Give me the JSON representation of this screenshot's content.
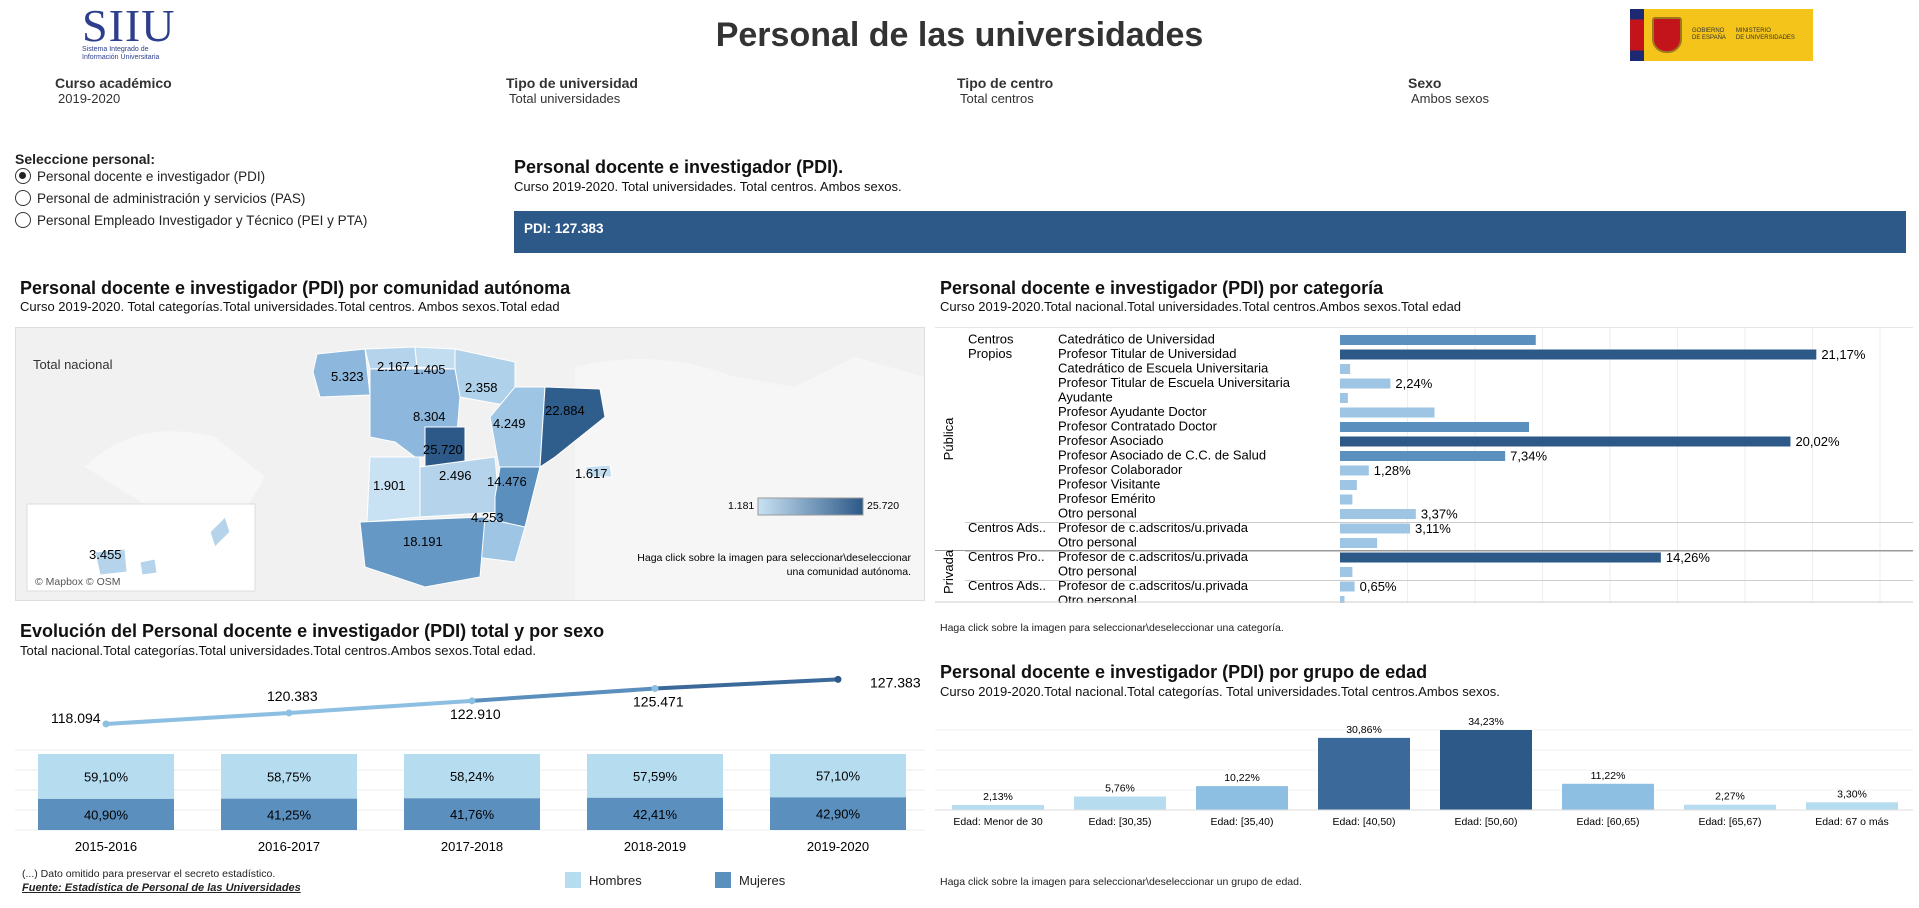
{
  "header": {
    "title": "Personal de las universidades",
    "logo": {
      "text": "SIIU",
      "subtitle_line1": "Sistema Integrado de",
      "subtitle_line2": "Información Universitaria"
    },
    "gov_logo": {
      "line1": "GOBIERNO",
      "line2": "DE ESPAÑA",
      "line3": "MINISTERIO",
      "line4": "DE UNIVERSIDADES"
    }
  },
  "filters": [
    {
      "label": "Curso académico",
      "value": "2019-2020"
    },
    {
      "label": "Tipo de universidad",
      "value": "Total universidades"
    },
    {
      "label": "Tipo de centro",
      "value": "Total centros"
    },
    {
      "label": "Sexo",
      "value": "Ambos sexos"
    }
  ],
  "selector": {
    "label": "Seleccione personal:",
    "options": [
      {
        "label": "Personal docente e investigador (PDI)",
        "selected": true
      },
      {
        "label": "Personal de administración y servicios (PAS)",
        "selected": false
      },
      {
        "label": "Personal Empleado Investigador y Técnico (PEI y PTA)",
        "selected": false
      }
    ]
  },
  "summary": {
    "title": "Personal docente e investigador (PDI).",
    "subtitle": "Curso  2019-2020. Total universidades. Total centros. Ambos sexos.",
    "total_label": "PDI: 127.383",
    "color": "#2c5988"
  },
  "map_panel": {
    "title": "Personal docente e investigador (PDI) por comunidad autónoma",
    "subtitle": "Curso 2019-2020. Total categorías.Total universidades.Total centros. Ambos sexos.Total edad",
    "total_label": "Total nacional",
    "attribution": "© Mapbox © OSM",
    "legend_min": "1.181",
    "legend_max": "25.720",
    "hint_line1": "Haga click sobre la imagen para seleccionar\\deseleccionar",
    "hint_line2": "una comunidad autónoma."
  },
  "category_panel": {
    "title": "Personal docente e investigador (PDI) por categoría",
    "subtitle": "Curso 2019-2020.Total nacional.Total universidades.Total centros.Ambos sexos.Total edad",
    "hint": "Haga click sobre la imagen para seleccionar\\deseleccionar una categoría.",
    "sectors": [
      "Pública",
      "Privada"
    ],
    "groups": [
      "Centros Propios",
      "Centros Ads..",
      "Centros Pro..",
      "Centros Ads.."
    ]
  },
  "evolution_panel": {
    "title": "Evolución del Personal docente e investigador (PDI) total y por sexo",
    "subtitle": "Total nacional.Total categorías.Total universidades.Total centros.Ambos sexos.Total edad.",
    "legend": [
      {
        "label": "Hombres",
        "color": "#b6dcf0"
      },
      {
        "label": "Mujeres",
        "color": "#5b8fbe"
      }
    ],
    "note": "(...) Dato omitido para preservar el secreto estadístico.",
    "source": "Fuente: Estadística de Personal de las Universidades"
  },
  "age_panel": {
    "title": "Personal docente e investigador (PDI) por grupo de edad",
    "subtitle": "Curso 2019-2020.Total nacional.Total categorías. Total universidades.Total centros.Ambos sexos.",
    "hint": "Haga click sobre la imagen para seleccionar\\deseleccionar un grupo de edad."
  },
  "chart_data": [
    {
      "type": "map",
      "name": "PDI por comunidad autónoma",
      "values": [
        {
          "region": "Galicia",
          "value": "5.323"
        },
        {
          "region": "Asturias",
          "value": "2.167"
        },
        {
          "region": "Cantabria",
          "value": "1.405"
        },
        {
          "region": "País Vasco / Navarra",
          "value": "2.358"
        },
        {
          "region": "Castilla y León",
          "value": "8.304"
        },
        {
          "region": "Aragón",
          "value": "4.249"
        },
        {
          "region": "Cataluña",
          "value": "22.884"
        },
        {
          "region": "Madrid",
          "value": "25.720"
        },
        {
          "region": "Extremadura",
          "value": "1.901"
        },
        {
          "region": "Castilla-La Mancha",
          "value": "2.496"
        },
        {
          "region": "Comunitat Valenciana",
          "value": "14.476"
        },
        {
          "region": "Illes Balears",
          "value": "1.617"
        },
        {
          "region": "Murcia",
          "value": "4.253"
        },
        {
          "region": "Andalucía",
          "value": "18.191"
        },
        {
          "region": "Canarias",
          "value": "3.455"
        }
      ],
      "color_range": [
        "#c9e2f3",
        "#2c5988"
      ]
    },
    {
      "type": "bar",
      "name": "PDI por categoría",
      "orientation": "horizontal",
      "rows": [
        {
          "sector": "Pública",
          "group": "Centros Propios",
          "category": "Catedrático de Universidad",
          "value": 8.7,
          "label": ""
        },
        {
          "sector": "Pública",
          "group": "Centros Propios",
          "category": "Profesor Titular de Universidad",
          "value": 21.17,
          "label": "21,17%"
        },
        {
          "sector": "Pública",
          "group": "Centros Propios",
          "category": "Catedrático de Escuela Universitaria",
          "value": 0.45,
          "label": ""
        },
        {
          "sector": "Pública",
          "group": "Centros Propios",
          "category": "Profesor Titular de Escuela Universitaria",
          "value": 2.24,
          "label": "2,24%"
        },
        {
          "sector": "Pública",
          "group": "Centros Propios",
          "category": "Ayudante",
          "value": 0.35,
          "label": ""
        },
        {
          "sector": "Pública",
          "group": "Centros Propios",
          "category": "Profesor Ayudante Doctor",
          "value": 4.2,
          "label": ""
        },
        {
          "sector": "Pública",
          "group": "Centros Propios",
          "category": "Profesor Contratado Doctor",
          "value": 8.4,
          "label": ""
        },
        {
          "sector": "Pública",
          "group": "Centros Propios",
          "category": "Profesor Asociado",
          "value": 20.02,
          "label": "20,02%"
        },
        {
          "sector": "Pública",
          "group": "Centros Propios",
          "category": "Profesor Asociado de C.C. de Salud",
          "value": 7.34,
          "label": "7,34%"
        },
        {
          "sector": "Pública",
          "group": "Centros Propios",
          "category": "Profesor Colaborador",
          "value": 1.28,
          "label": "1,28%"
        },
        {
          "sector": "Pública",
          "group": "Centros Propios",
          "category": "Profesor Visitante",
          "value": 0.75,
          "label": ""
        },
        {
          "sector": "Pública",
          "group": "Centros Propios",
          "category": "Profesor Emérito",
          "value": 0.55,
          "label": ""
        },
        {
          "sector": "Pública",
          "group": "Centros Propios",
          "category": "Otro personal",
          "value": 3.37,
          "label": "3,37%"
        },
        {
          "sector": "Pública",
          "group": "Centros Ads..",
          "category": "Profesor de c.adscritos/u.privada",
          "value": 3.11,
          "label": "3,11%"
        },
        {
          "sector": "Pública",
          "group": "Centros Ads..",
          "category": "Otro personal",
          "value": 1.65,
          "label": ""
        },
        {
          "sector": "Privada",
          "group": "Centros Pro..",
          "category": "Profesor de c.adscritos/u.privada",
          "value": 14.26,
          "label": "14,26%"
        },
        {
          "sector": "Privada",
          "group": "Centros Pro..",
          "category": "Otro personal",
          "value": 0.55,
          "label": ""
        },
        {
          "sector": "Privada",
          "group": "Centros Ads..",
          "category": "Profesor de c.adscritos/u.privada",
          "value": 0.65,
          "label": "0,65%"
        },
        {
          "sector": "Privada",
          "group": "Centros Ads..",
          "category": "Otro personal",
          "value": 0.2,
          "label": ""
        }
      ],
      "xlim": [
        0,
        24
      ]
    },
    {
      "type": "line",
      "name": "PDI total",
      "x": [
        "2015-2016",
        "2016-2017",
        "2017-2018",
        "2018-2019",
        "2019-2020"
      ],
      "values": [
        118094,
        120383,
        122910,
        125471,
        127383
      ],
      "labels": [
        "118.094",
        "120.383",
        "122.910",
        "125.471",
        "127.383"
      ]
    },
    {
      "type": "bar",
      "stacked": true,
      "name": "PDI por sexo",
      "categories": [
        "2015-2016",
        "2016-2017",
        "2017-2018",
        "2018-2019",
        "2019-2020"
      ],
      "series": [
        {
          "name": "Hombres",
          "values": [
            59.1,
            58.75,
            58.24,
            57.59,
            57.1
          ],
          "labels": [
            "59,10%",
            "58,75%",
            "58,24%",
            "57,59%",
            "57,10%"
          ]
        },
        {
          "name": "Mujeres",
          "values": [
            40.9,
            41.25,
            41.76,
            42.41,
            42.9
          ],
          "labels": [
            "40,90%",
            "41,25%",
            "41,76%",
            "42,41%",
            "42,90%"
          ]
        }
      ]
    },
    {
      "type": "bar",
      "name": "PDI por grupo de edad",
      "categories": [
        "Edad: Menor de 30",
        "Edad: [30,35)",
        "Edad: [35,40)",
        "Edad: [40,50)",
        "Edad: [50,60)",
        "Edad: [60,65)",
        "Edad: [65,67)",
        "Edad: 67 o más"
      ],
      "values": [
        2.13,
        5.76,
        10.22,
        30.86,
        34.23,
        11.22,
        2.27,
        3.3
      ],
      "labels": [
        "2,13%",
        "5,76%",
        "10,22%",
        "30,86%",
        "34,23%",
        "11,22%",
        "2,27%",
        "3,30%"
      ],
      "ylim": [
        0,
        36
      ]
    }
  ]
}
